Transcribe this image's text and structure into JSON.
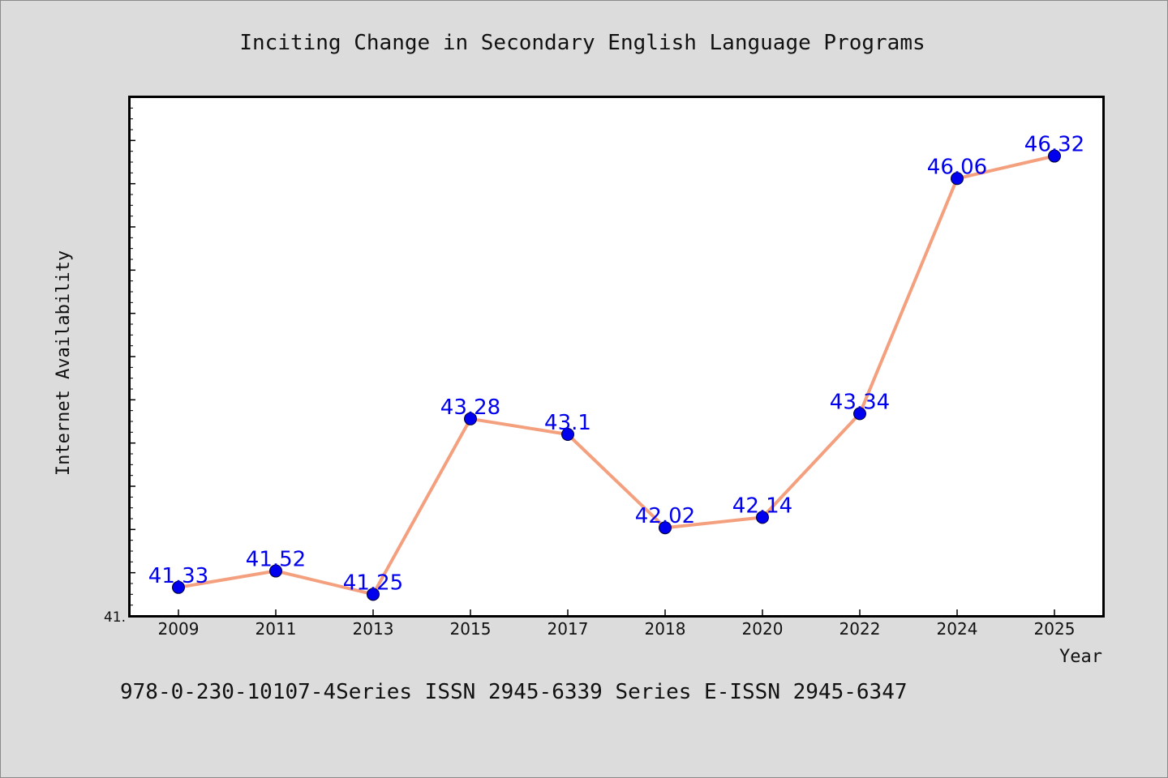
{
  "chart_data": {
    "type": "line",
    "title": "Inciting Change in Secondary English Language Programs",
    "xlabel": "Year",
    "ylabel": "Internet Availability",
    "categories": [
      "2009",
      "2011",
      "2013",
      "2015",
      "2017",
      "2018",
      "2020",
      "2022",
      "2024",
      "2025"
    ],
    "values": [
      41.33,
      41.52,
      41.25,
      43.28,
      43.1,
      42.02,
      42.14,
      43.34,
      46.06,
      46.32
    ],
    "data_labels": [
      "41.33",
      "41.52",
      "41.25",
      "43.28",
      "43.1",
      "42.02",
      "42.14",
      "43.34",
      "46.06",
      "46.32"
    ],
    "ylim": [
      41.0,
      47.0
    ],
    "y_tick_label": "41.",
    "grid": false,
    "legend": "none",
    "colors": {
      "line": "#f4a07e",
      "marker": "#0000ee",
      "data_label": "#0000ee",
      "plot_background": "#ffffff",
      "figure_background": "#dcdcdc"
    }
  },
  "footer": {
    "text": "978-0-230-10107-4Series ISSN 2945-6339 Series E-ISSN 2945-6347"
  }
}
